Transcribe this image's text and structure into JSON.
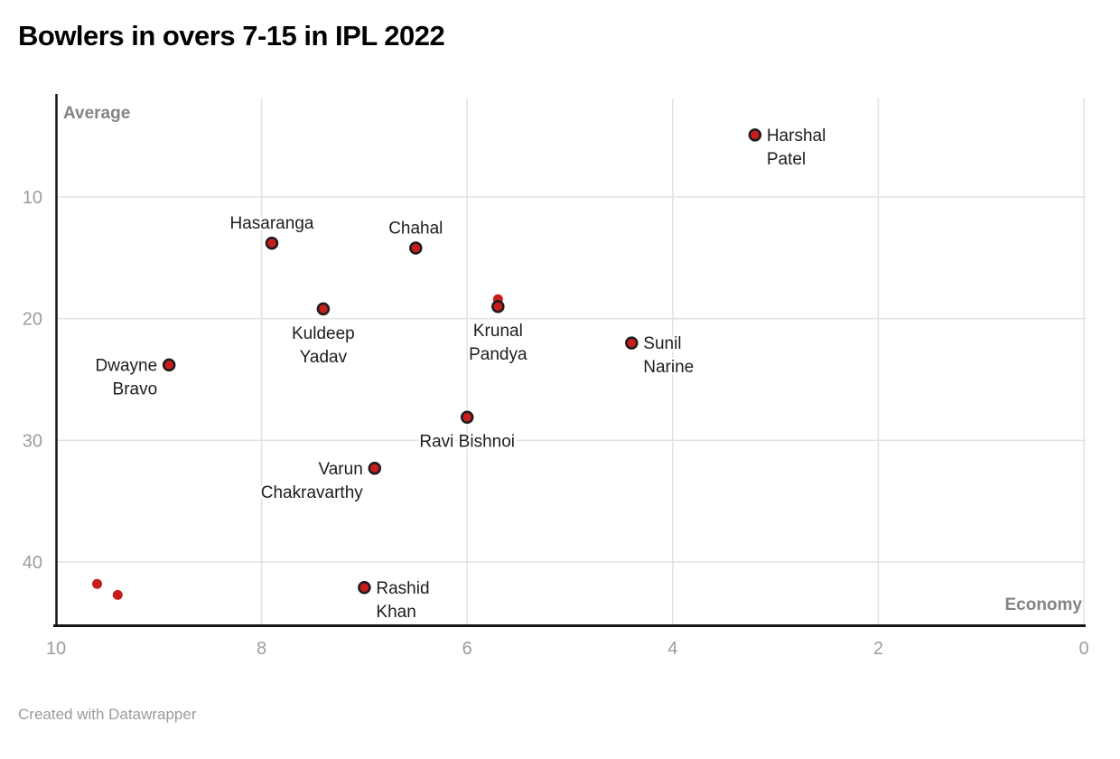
{
  "header": {
    "title": "Bowlers in overs 7-15 in IPL 2022"
  },
  "footer": {
    "credit": "Created with Datawrapper"
  },
  "chart_data": {
    "type": "scatter",
    "title": "Bowlers in overs 7-15 in IPL 2022",
    "xlabel": "Economy",
    "ylabel": "Average",
    "x_axis": {
      "label": "Economy",
      "ticks": [
        10,
        8,
        6,
        4,
        2,
        0
      ],
      "range": [
        10,
        0
      ],
      "reversed": true
    },
    "y_axis": {
      "label": "Average",
      "ticks": [
        10,
        20,
        30,
        40
      ],
      "range": [
        1.6,
        45.3
      ],
      "inverted": true
    },
    "grid": true,
    "legend": "none",
    "colors": {
      "dot_fill": "#c71e1d",
      "dot_stroke": "#1c1c1c",
      "grid": "#e2e2e2",
      "axis_line": "#161616",
      "tick_text": "#9c9c9c",
      "axis_title_text": "#848484",
      "label_text": "#1d1d1d",
      "background": "#ffffff"
    },
    "points": [
      {
        "name": "harshal-patel",
        "economy": 3.2,
        "average": 4.9,
        "label_lines": [
          "Harshal",
          "Patel"
        ],
        "label_anchor": "right",
        "outlined": true
      },
      {
        "name": "hasaranga",
        "economy": 7.9,
        "average": 13.8,
        "label_lines": [
          "Hasaranga"
        ],
        "label_anchor": "above",
        "outlined": true
      },
      {
        "name": "chahal",
        "economy": 6.5,
        "average": 14.2,
        "label_lines": [
          "Chahal"
        ],
        "label_anchor": "above",
        "outlined": true
      },
      {
        "name": "kuldeep-yadav",
        "economy": 7.4,
        "average": 19.2,
        "label_lines": [
          "Kuldeep",
          "Yadav"
        ],
        "label_anchor": "below",
        "outlined": true
      },
      {
        "name": "unlabeled-point-1",
        "economy": 5.7,
        "average": 18.4,
        "label_lines": [],
        "label_anchor": "none",
        "outlined": false
      },
      {
        "name": "krunal-pandya",
        "economy": 5.7,
        "average": 19.0,
        "label_lines": [
          "Krunal",
          "Pandya"
        ],
        "label_anchor": "below",
        "outlined": true
      },
      {
        "name": "sunil-narine",
        "economy": 4.4,
        "average": 22.0,
        "label_lines": [
          "Sunil",
          "Narine"
        ],
        "label_anchor": "right",
        "outlined": true
      },
      {
        "name": "dwayne-bravo",
        "economy": 8.9,
        "average": 23.8,
        "label_lines": [
          "Dwayne",
          "Bravo"
        ],
        "label_anchor": "left",
        "outlined": true
      },
      {
        "name": "ravi-bishnoi",
        "economy": 6.0,
        "average": 28.1,
        "label_lines": [
          "Ravi Bishnoi"
        ],
        "label_anchor": "below",
        "outlined": true
      },
      {
        "name": "varun-chakravarthy",
        "economy": 6.9,
        "average": 32.3,
        "label_lines": [
          "Varun",
          "Chakravarthy"
        ],
        "label_anchor": "left",
        "outlined": true
      },
      {
        "name": "rashid-khan",
        "economy": 7.0,
        "average": 42.1,
        "label_lines": [
          "Rashid",
          "Khan"
        ],
        "label_anchor": "right",
        "outlined": true
      },
      {
        "name": "unlabeled-point-2",
        "economy": 9.6,
        "average": 41.8,
        "label_lines": [],
        "label_anchor": "none",
        "outlined": false
      },
      {
        "name": "unlabeled-point-3",
        "economy": 9.4,
        "average": 42.7,
        "label_lines": [],
        "label_anchor": "none",
        "outlined": false
      }
    ]
  }
}
